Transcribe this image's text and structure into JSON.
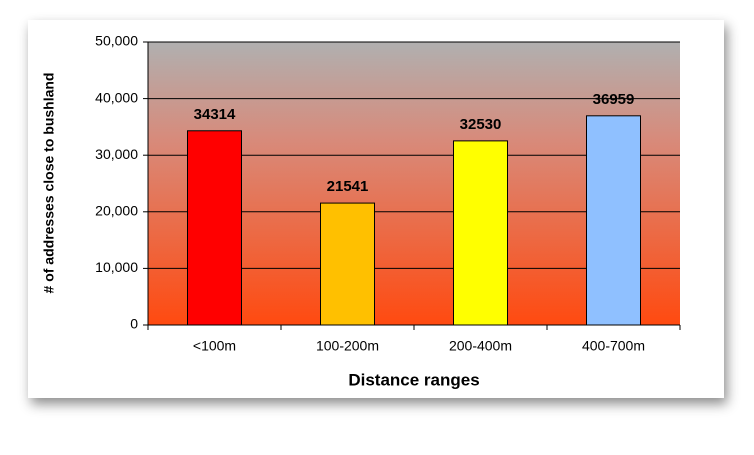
{
  "chart_data": {
    "type": "bar",
    "x_label": "Distance ranges",
    "y_label": "# of addresses close to bushland",
    "categories": [
      "<100m",
      "100-200m",
      "200-400m",
      "400-700m"
    ],
    "values": [
      34314,
      21541,
      32530,
      36959
    ],
    "colors": [
      "#ff0000",
      "#ffc000",
      "#ffff00",
      "#8fc0ff"
    ],
    "ylim": [
      0,
      50000
    ],
    "yticks": [
      0,
      {
        "value": 10000,
        "label": "10,000"
      },
      {
        "value": 20000,
        "label": "20,000"
      },
      {
        "value": 30000,
        "label": "30,000"
      },
      {
        "value": 40000,
        "label": "40,000"
      },
      {
        "value": 50000,
        "label": "50,000"
      }
    ],
    "grid": true,
    "data_labels": true
  }
}
